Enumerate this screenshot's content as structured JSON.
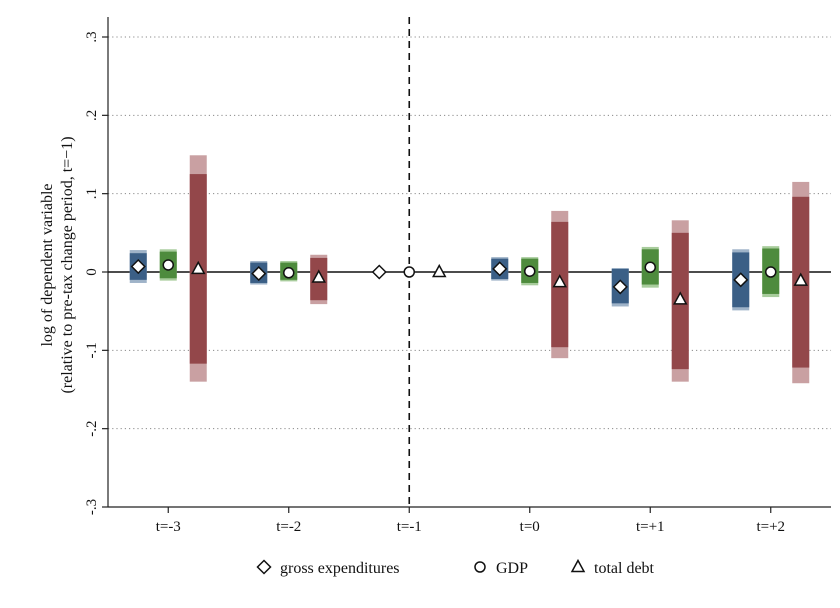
{
  "chart_data": {
    "type": "coefficient plot",
    "title": "",
    "ylabel_line1": "log of dependent variable",
    "ylabel_line2": "(relative to pre-tax change period, t=−1)",
    "xlabel": "",
    "categories": [
      "t=-3",
      "t=-2",
      "t=-1",
      "t=0",
      "t=+1",
      "t=+2"
    ],
    "ylim": [
      -0.3,
      0.3
    ],
    "yticks": [
      -0.3,
      -0.2,
      -0.1,
      0,
      0.1,
      0.2,
      0.3
    ],
    "ytick_labels": [
      "-.3",
      "-.2",
      "-.1",
      "0",
      ".1",
      ".2",
      ".3"
    ],
    "grid": "horizontal dotted",
    "reference_line": {
      "y": 0,
      "style": "solid"
    },
    "event_line": {
      "category": "t=-1",
      "style": "dashed"
    },
    "legend_position": "bottom",
    "series": [
      {
        "name": "gross expenditures",
        "marker": "diamond",
        "color": "#3b5f86",
        "ci_light_color": "#9fb3c8",
        "values": [
          0.007,
          -0.002,
          0.0,
          0.004,
          -0.019,
          -0.01
        ],
        "ci90": [
          [
            -0.01,
            0.024
          ],
          [
            -0.014,
            0.012
          ],
          null,
          [
            -0.009,
            0.017
          ],
          [
            -0.04,
            0.004
          ],
          [
            -0.045,
            0.025
          ]
        ],
        "ci95": [
          [
            -0.014,
            0.028
          ],
          [
            -0.016,
            0.014
          ],
          null,
          [
            -0.011,
            0.019
          ],
          [
            -0.044,
            0.005
          ],
          [
            -0.049,
            0.029
          ]
        ]
      },
      {
        "name": "GDP",
        "marker": "circle",
        "color": "#4e8b3d",
        "ci_light_color": "#a8cc9c",
        "values": [
          0.009,
          -0.001,
          0.0,
          0.001,
          0.006,
          0.0
        ],
        "ci90": [
          [
            -0.008,
            0.026
          ],
          [
            -0.01,
            0.012
          ],
          null,
          [
            -0.014,
            0.017
          ],
          [
            -0.016,
            0.029
          ],
          [
            -0.028,
            0.03
          ]
        ],
        "ci95": [
          [
            -0.011,
            0.029
          ],
          [
            -0.012,
            0.014
          ],
          null,
          [
            -0.017,
            0.019
          ],
          [
            -0.02,
            0.032
          ],
          [
            -0.032,
            0.033
          ]
        ]
      },
      {
        "name": "total debt",
        "marker": "triangle",
        "color": "#93474a",
        "ci_light_color": "#c9a0a2",
        "values": [
          0.004,
          -0.007,
          0.0,
          -0.013,
          -0.035,
          -0.011
        ],
        "ci90": [
          [
            -0.117,
            0.125
          ],
          [
            -0.036,
            0.018
          ],
          null,
          [
            -0.096,
            0.064
          ],
          [
            -0.124,
            0.05
          ],
          [
            -0.122,
            0.096
          ]
        ],
        "ci95": [
          [
            -0.14,
            0.149
          ],
          [
            -0.041,
            0.022
          ],
          null,
          [
            -0.11,
            0.078
          ],
          [
            -0.14,
            0.066
          ],
          [
            -0.142,
            0.115
          ]
        ]
      }
    ]
  }
}
